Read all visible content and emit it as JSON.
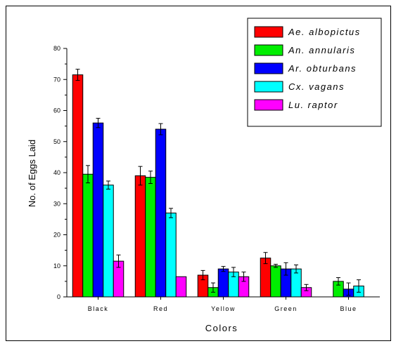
{
  "chart_data": {
    "type": "bar",
    "xlabel": "Colors",
    "ylabel": "No. of Eggs Laid",
    "ylim": [
      0,
      80
    ],
    "yticks": [
      0,
      10,
      20,
      30,
      40,
      50,
      60,
      70,
      80
    ],
    "categories": [
      "Black",
      "Red",
      "Yellow",
      "Green",
      "Blue"
    ],
    "legend_position": "top-right",
    "series": [
      {
        "name": "Ae. albopictus",
        "color": "#ff0000",
        "values": [
          71.5,
          39,
          7,
          12.5,
          0
        ],
        "errors": [
          1.8,
          3,
          1.5,
          1.8,
          0
        ]
      },
      {
        "name": "An. annularis",
        "color": "#00ee00",
        "values": [
          39.5,
          38.5,
          3,
          10,
          5
        ],
        "errors": [
          2.8,
          2,
          1.5,
          0.5,
          1.2
        ]
      },
      {
        "name": "Ar. obturbans",
        "color": "#0000ff",
        "values": [
          56,
          54,
          9,
          9,
          2.5
        ],
        "errors": [
          1.5,
          1.8,
          0.8,
          2,
          2
        ]
      },
      {
        "name": "Cx. vagans",
        "color": "#00ffff",
        "values": [
          36,
          27,
          8,
          9,
          3.5
        ],
        "errors": [
          1.3,
          1.5,
          1.5,
          1.3,
          2
        ]
      },
      {
        "name": "Lu. raptor",
        "color": "#ff00ff",
        "values": [
          11.5,
          6.5,
          6.5,
          3,
          0
        ],
        "errors": [
          2,
          0,
          1.5,
          1,
          0
        ]
      }
    ]
  }
}
